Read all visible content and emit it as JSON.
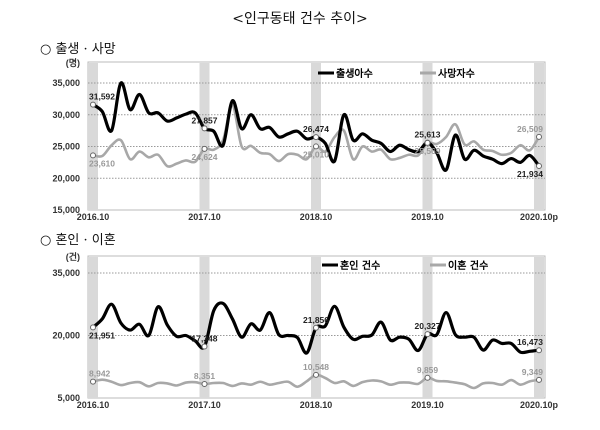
{
  "title": "<인구동태 건수 추이>",
  "chart_data": [
    {
      "type": "line",
      "section_title": "○ 출생 · 사망",
      "unit": "(명)",
      "ylim": [
        15000,
        35000
      ],
      "yticks": [
        "35,000",
        "30,000",
        "25,000",
        "20,000",
        "15,000"
      ],
      "ytick_values": [
        35000,
        30000,
        25000,
        20000,
        15000
      ],
      "xtick_labels": [
        "2016.10",
        "2017.10",
        "2018.10",
        "2019.10",
        "2020.10p"
      ],
      "x_start": "2016.10",
      "x_end": "2020.10",
      "grid": "dotted horizontal",
      "highlight_months": "October (shaded bands)",
      "legend_position": "top-right",
      "series": [
        {
          "name": "출생아수",
          "color": "#000000",
          "values": [
            31592,
            30500,
            27500,
            35000,
            30800,
            33200,
            30300,
            30300,
            29000,
            29500,
            30100,
            30300,
            27857,
            27400,
            25200,
            32200,
            27800,
            30000,
            27800,
            28000,
            26500,
            27000,
            27400,
            26200,
            26474,
            25500,
            22700,
            30000,
            26000,
            27000,
            26000,
            25500,
            24200,
            25200,
            24500,
            24200,
            25613,
            24000,
            21300,
            26800,
            23000,
            24400,
            23500,
            23000,
            22300,
            23100,
            22500,
            23600,
            21934
          ],
          "labels": [
            {
              "i": 0,
              "text": "31,592",
              "pos": "above"
            },
            {
              "i": 12,
              "text": "27,857",
              "pos": "above"
            },
            {
              "i": 24,
              "text": "26,474",
              "pos": "above"
            },
            {
              "i": 36,
              "text": "25,613",
              "pos": "above"
            },
            {
              "i": 48,
              "text": "21,934",
              "pos": "below"
            }
          ]
        },
        {
          "name": "사망자수",
          "color": "#a8a8a8",
          "values": [
            23610,
            23500,
            25200,
            26000,
            23000,
            24200,
            23300,
            23700,
            21900,
            22300,
            22800,
            22600,
            24624,
            24500,
            26000,
            31500,
            25000,
            25100,
            24000,
            23800,
            22700,
            23800,
            23700,
            23000,
            25010,
            24200,
            26500,
            27500,
            23000,
            25000,
            24200,
            24500,
            23000,
            23200,
            23700,
            23600,
            25569,
            25400,
            26500,
            28500,
            25300,
            25800,
            24500,
            24300,
            23700,
            24000,
            25200,
            24400,
            26509
          ],
          "labels": [
            {
              "i": 0,
              "text": "23,610",
              "pos": "below"
            },
            {
              "i": 12,
              "text": "24,624",
              "pos": "below"
            },
            {
              "i": 24,
              "text": "25,010",
              "pos": "below"
            },
            {
              "i": 36,
              "text": "25,569",
              "pos": "below"
            },
            {
              "i": 48,
              "text": "26,509",
              "pos": "above"
            }
          ]
        }
      ]
    },
    {
      "type": "line",
      "section_title": "○ 혼인 · 이혼",
      "unit": "(건)",
      "ylim": [
        5000,
        35000
      ],
      "yticks": [
        "35,000",
        "20,000",
        "5,000"
      ],
      "ytick_values": [
        35000,
        20000,
        5000
      ],
      "xtick_labels": [
        "2016.10",
        "2017.10",
        "2018.10",
        "2019.10",
        "2020.10p"
      ],
      "x_start": "2016.10",
      "x_end": "2020.10",
      "grid": "dotted horizontal",
      "highlight_months": "October (shaded bands)",
      "legend_position": "top-right",
      "series": [
        {
          "name": "혼인 건수",
          "color": "#000000",
          "values": [
            21951,
            24000,
            27500,
            23000,
            21300,
            22700,
            20000,
            26900,
            22500,
            19800,
            20000,
            18700,
            17348,
            26000,
            27700,
            24000,
            19600,
            22800,
            21300,
            25500,
            20200,
            20000,
            19500,
            15800,
            21856,
            22300,
            27000,
            22000,
            19100,
            19800,
            20100,
            23200,
            18900,
            19600,
            19100,
            16400,
            20327,
            20200,
            25500,
            20200,
            19600,
            19600,
            16500,
            18900,
            18100,
            18100,
            16000,
            16200,
            16473
          ],
          "labels": [
            {
              "i": 0,
              "text": "21,951",
              "pos": "below"
            },
            {
              "i": 12,
              "text": "17,348",
              "pos": "above"
            },
            {
              "i": 24,
              "text": "21,856",
              "pos": "above"
            },
            {
              "i": 36,
              "text": "20,327",
              "pos": "above"
            },
            {
              "i": 48,
              "text": "16,473",
              "pos": "above"
            }
          ]
        },
        {
          "name": "이혼 건수",
          "color": "#a8a8a8",
          "values": [
            8942,
            9400,
            8900,
            8100,
            8600,
            8800,
            7800,
            8600,
            8500,
            8000,
            8700,
            8800,
            8351,
            8600,
            8600,
            7900,
            8500,
            8200,
            8900,
            8200,
            8600,
            8900,
            7700,
            9000,
            10548,
            9800,
            8600,
            9000,
            7900,
            8800,
            9200,
            9000,
            8200,
            8700,
            8700,
            8400,
            9859,
            9100,
            9000,
            8700,
            8300,
            7400,
            8500,
            8600,
            8200,
            9300,
            8200,
            9000,
            9349
          ],
          "labels": [
            {
              "i": 0,
              "text": "8,942",
              "pos": "above"
            },
            {
              "i": 12,
              "text": "8,351",
              "pos": "above"
            },
            {
              "i": 24,
              "text": "10,548",
              "pos": "above"
            },
            {
              "i": 36,
              "text": "9,859",
              "pos": "above"
            },
            {
              "i": 48,
              "text": "9,349",
              "pos": "above"
            }
          ]
        }
      ]
    }
  ]
}
